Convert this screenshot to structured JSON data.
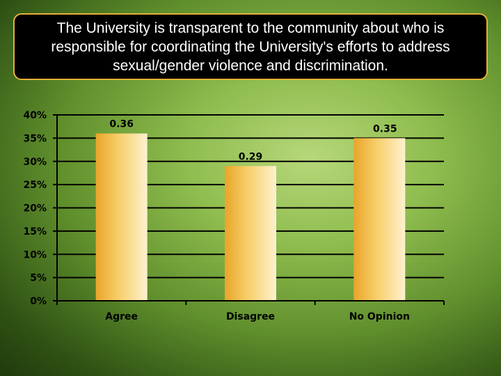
{
  "slide": {
    "title": "The University is transparent to the community about who is responsible for coordinating the University's efforts to address sexual/gender violence and discrimination."
  },
  "chart_data": {
    "type": "bar",
    "categories": [
      "Agree",
      "Disagree",
      "No Opinion"
    ],
    "values": [
      0.36,
      0.29,
      0.35
    ],
    "data_labels": [
      "0.36",
      "0.29",
      "0.35"
    ],
    "ylim": [
      0,
      0.4
    ],
    "yticks": [
      0,
      0.05,
      0.1,
      0.15,
      0.2,
      0.25,
      0.3,
      0.35,
      0.4
    ],
    "ytick_labels": [
      "0%",
      "5%",
      "10%",
      "15%",
      "20%",
      "25%",
      "30%",
      "35%",
      "40%"
    ],
    "grid": true,
    "legend": "none",
    "bar_color": "#f2b73a",
    "bar_highlight": "#fde9b0",
    "title": "",
    "xlabel": "",
    "ylabel": ""
  }
}
